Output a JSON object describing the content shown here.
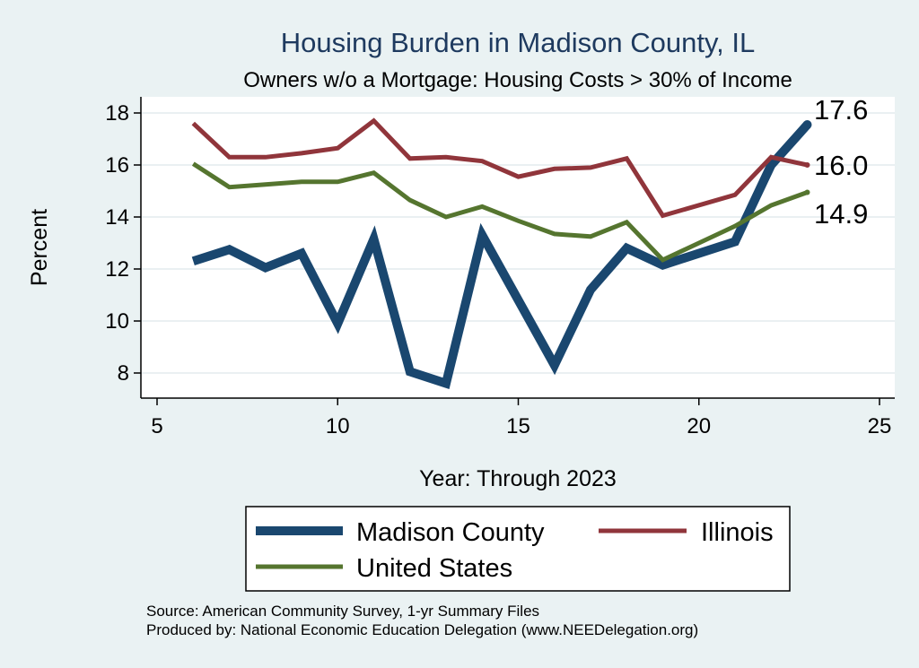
{
  "title": "Housing Burden in Madison County, IL",
  "subtitle": "Owners w/o a Mortgage: Housing Costs > 30% of Income",
  "chart_data": {
    "type": "line",
    "xlabel": "Year: Through 2023",
    "ylabel": "Percent",
    "xlim": [
      5,
      25
    ],
    "ylim": [
      7,
      18.5
    ],
    "xticks": [
      5,
      10,
      15,
      20,
      25
    ],
    "yticks": [
      8,
      10,
      12,
      14,
      16,
      18
    ],
    "grid": true,
    "legend_position": "bottom",
    "series": [
      {
        "name": "Madison County",
        "color": "#1a476f",
        "x": [
          6,
          7,
          8,
          9,
          10,
          11,
          12,
          13,
          14,
          16,
          17,
          18,
          19,
          21,
          22,
          23
        ],
        "values": [
          12.3,
          12.75,
          12.05,
          12.6,
          9.9,
          13.15,
          8.05,
          7.6,
          13.3,
          8.3,
          11.2,
          12.8,
          12.15,
          13.05,
          16.0,
          17.55
        ],
        "end_label": "17.6"
      },
      {
        "name": "Illinois",
        "color": "#90353b",
        "x": [
          6,
          7,
          8,
          9,
          10,
          11,
          12,
          13,
          14,
          15,
          16,
          17,
          18,
          19,
          21,
          22,
          23
        ],
        "values": [
          17.6,
          16.3,
          16.3,
          16.45,
          16.65,
          17.7,
          16.25,
          16.3,
          16.15,
          15.55,
          15.85,
          15.9,
          16.25,
          14.05,
          14.85,
          16.3,
          16.0
        ],
        "end_label": "16.0"
      },
      {
        "name": "United States",
        "color": "#55752f",
        "x": [
          6,
          7,
          8,
          9,
          10,
          11,
          12,
          13,
          14,
          15,
          16,
          17,
          18,
          19,
          21,
          22,
          23
        ],
        "values": [
          16.05,
          15.15,
          15.25,
          15.35,
          15.35,
          15.7,
          14.65,
          14.0,
          14.4,
          13.85,
          13.35,
          13.25,
          13.8,
          12.35,
          13.65,
          14.45,
          14.95
        ],
        "end_label": "14.9"
      }
    ]
  },
  "footer": {
    "source": "Source: American Community Survey, 1-yr Summary Files",
    "produced_by": "Produced by: National Economic Education Delegation (www.NEEDelegation.org)"
  }
}
